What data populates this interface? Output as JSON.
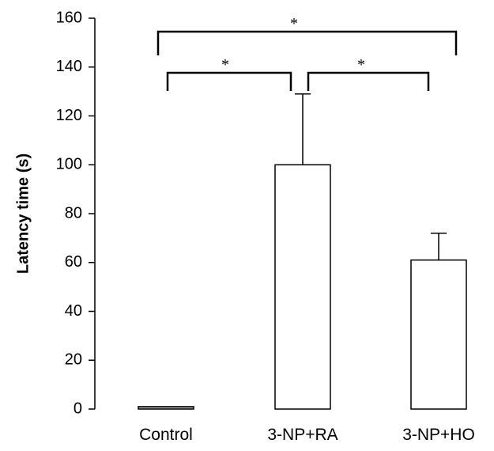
{
  "chart_data": {
    "type": "bar",
    "categories": [
      "Control",
      "3-NP+RA",
      "3-NP+HO"
    ],
    "values": [
      1,
      100,
      61
    ],
    "error_upper": [
      0,
      29,
      11
    ],
    "ylabel": "Latency time (s)",
    "xlabel": "",
    "ylim": [
      0,
      160
    ],
    "yticks": [
      "0",
      "20",
      "40",
      "60",
      "80",
      "100",
      "120",
      "140",
      "160"
    ],
    "grid": false,
    "legend": "none",
    "significance": [
      {
        "from": "Control",
        "to": "3-NP+RA",
        "label": "*"
      },
      {
        "from": "3-NP+RA",
        "to": "3-NP+HO",
        "label": "*"
      },
      {
        "from": "Control",
        "to": "3-NP+HO",
        "label": "*"
      }
    ],
    "colors": {
      "bar_fill": "#ffffff",
      "control_fill": "#a6a6a6",
      "stroke": "#000000",
      "background": "#ffffff"
    }
  }
}
